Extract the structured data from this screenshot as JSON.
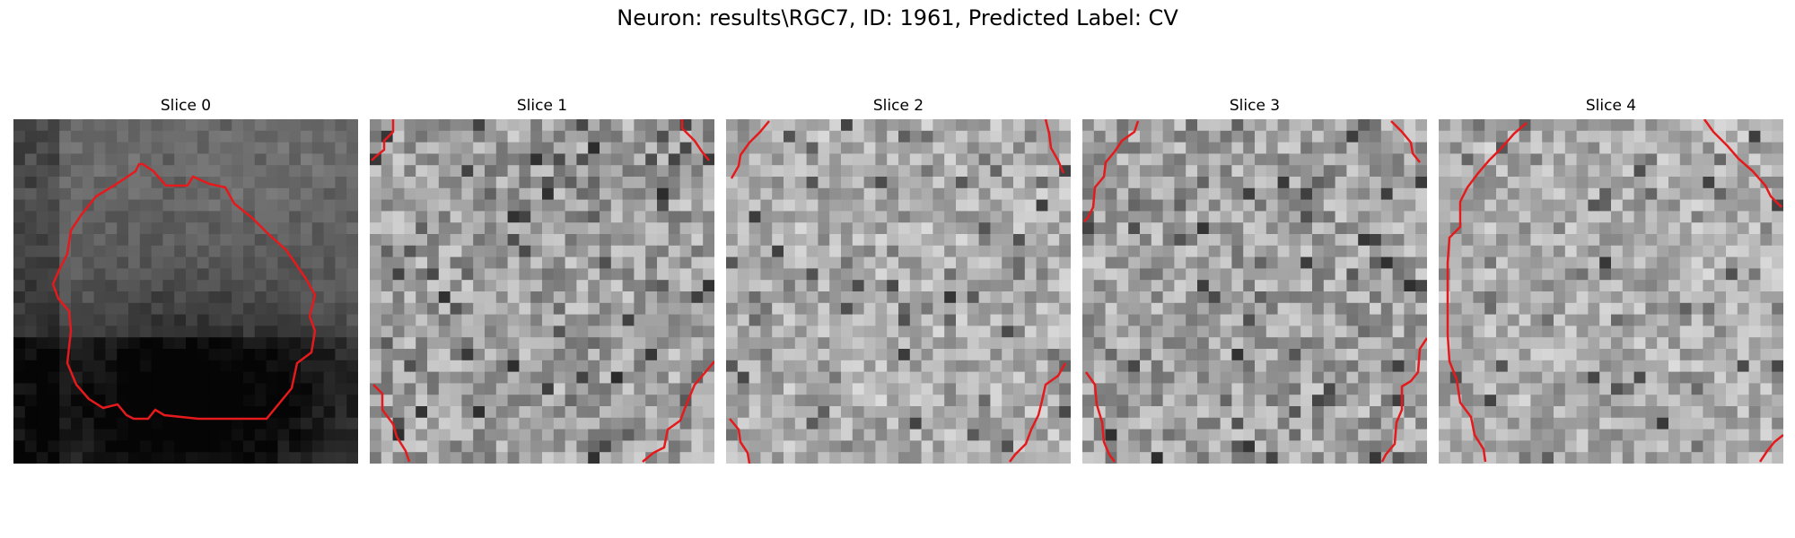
{
  "figure": {
    "title": "Neuron: results\\RGC7, ID: 1961, Predicted Label: CV",
    "panels": [
      {
        "title": "Slice 0",
        "texture": "dark",
        "seed": 11
      },
      {
        "title": "Slice 1",
        "texture": "mid",
        "seed": 23
      },
      {
        "title": "Slice 2",
        "texture": "light",
        "seed": 37
      },
      {
        "title": "Slice 3",
        "texture": "mid",
        "seed": 41
      },
      {
        "title": "Slice 4",
        "texture": "light",
        "seed": 53
      }
    ],
    "contour_color": "#e41a1c"
  }
}
